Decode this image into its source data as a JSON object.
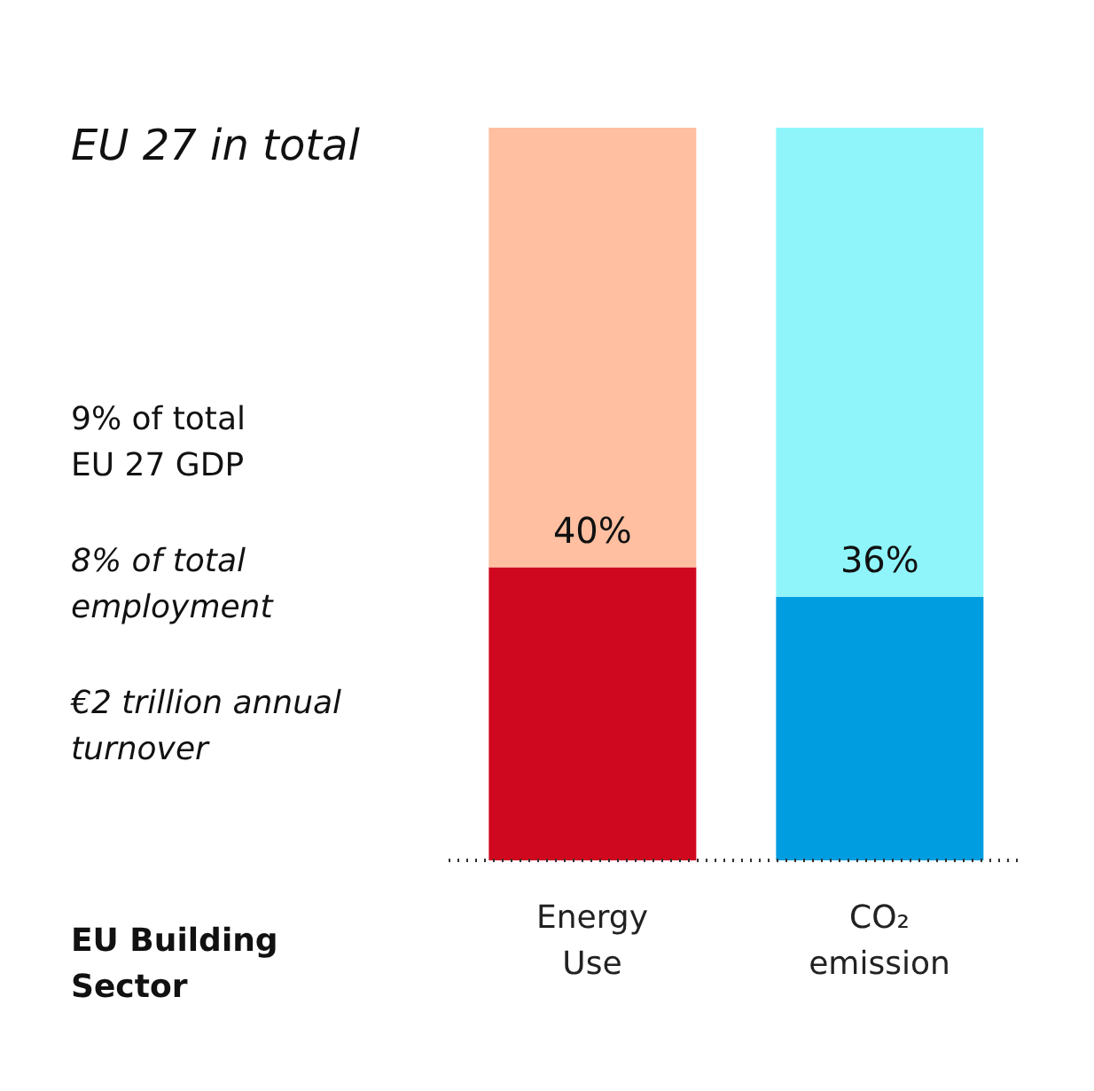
{
  "chart_data": {
    "type": "bar",
    "title": "EU 27 in total",
    "categories": [
      "Energy Use",
      "CO₂ emission"
    ],
    "stacked": true,
    "ylim": [
      0,
      100
    ],
    "tick_labels": "x",
    "grid": false,
    "legend": false,
    "series": [
      {
        "colors": [
          "#d0081f",
          "#009ee0"
        ],
        "values": [
          40,
          36
        ],
        "value_labels": [
          "40%",
          "36%"
        ]
      },
      {
        "colors": [
          "#ffbfa0",
          "#8ff5fb"
        ],
        "values": [
          60,
          64
        ]
      }
    ],
    "annotations": [
      "9% of total EU 27 GDP",
      "8% of total employment",
      "€2 trillion annual turnover",
      "EU Building Sector"
    ]
  }
}
